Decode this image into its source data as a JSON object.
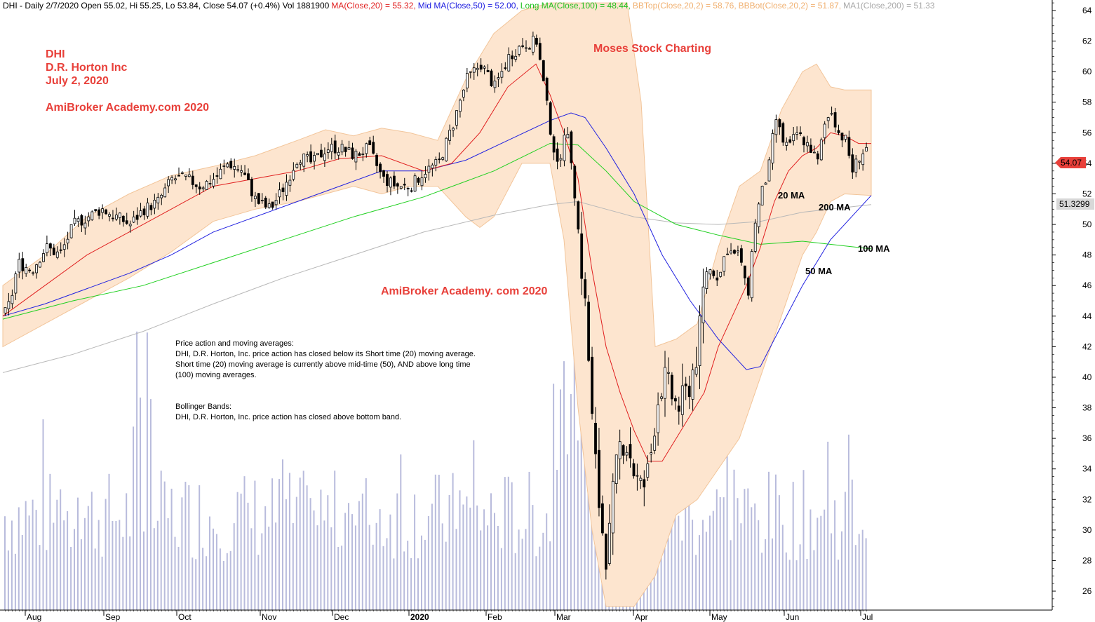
{
  "header": {
    "symbol_info": "DHI - Daily 2/7/2020 Open 55.02, Hi 55.25, Lo 53.84, Close 54.07 (+0.4%) Vol 1881900",
    "ma20": "MA(Close,20) = 55.32,",
    "ma50": "Mid MA(Close,50) = 52.00,",
    "ma100": "Long MA(Close,100) = 48.44,",
    "bbtop": "BBTop(Close,20,2) = 58.76,",
    "bbbot": "BBBot(Close,20,2) = 51.87,",
    "ma200": "MA1(Close,200) = 51.33"
  },
  "titles": {
    "line1": "DHI",
    "line2": "D.R. Horton Inc",
    "line3": "July 2, 2020",
    "line4": "AmiBroker Academy.com 2020",
    "watermark1": "Moses Stock Charting",
    "watermark2": "AmiBroker Academy. com  2020"
  },
  "notes": {
    "p1_title": "Price action and moving averages:",
    "p1_l1": "DHI, D.R. Horton, Inc. price action has closed below its Short time (20) moving average.",
    "p1_l2": "Short time (20) moving average is currently above mid-time (50), AND above long time",
    "p1_l3": "(100) moving averages.",
    "p2_title": "Bollinger Bands:",
    "p2_l1": "DHI, D.R. Horton, Inc. price action has closed above bottom band."
  },
  "ma_labels": {
    "ma20": "20 MA",
    "ma200": "200 MA",
    "ma100": "100 MA",
    "ma50": "50 MA"
  },
  "price_tags": {
    "last": "54.07",
    "ma200": "51.3299"
  },
  "colors": {
    "ma20": "#e02020",
    "ma50": "#2020e0",
    "ma100": "#20d020",
    "ma200": "#b8b8b8",
    "band_fill": "#fde5cf",
    "band_edge": "#f2c59a",
    "volume": "#b8bbdc",
    "candle": "#000000",
    "tag_red": "#e8403a",
    "tag_gray": "#d8d8d8",
    "watermark": "#e8403a"
  },
  "chart_data": {
    "type": "candlestick",
    "y_ticks": [
      26,
      28,
      30,
      32,
      34,
      36,
      38,
      40,
      42,
      44,
      46,
      48,
      50,
      52,
      54,
      56,
      58,
      60,
      62,
      64
    ],
    "ylim": [
      25,
      64.5
    ],
    "x_months": [
      "Aug",
      "Sep",
      "Oct",
      "Nov",
      "Dec",
      "2020",
      "Feb",
      "Mar",
      "Apr",
      "May",
      "Jun",
      "Jul"
    ],
    "price_path": [
      [
        0,
        44.0
      ],
      [
        10,
        45.0
      ],
      [
        20,
        47.5
      ],
      [
        40,
        47.0
      ],
      [
        60,
        48.5
      ],
      [
        80,
        48.0
      ],
      [
        100,
        50.0
      ],
      [
        120,
        50.5
      ],
      [
        140,
        51.0
      ],
      [
        160,
        50.5
      ],
      [
        180,
        50.0
      ],
      [
        200,
        51.0
      ],
      [
        220,
        51.5
      ],
      [
        240,
        53.0
      ],
      [
        260,
        53.0
      ],
      [
        280,
        52.5
      ],
      [
        300,
        53.0
      ],
      [
        320,
        54.0
      ],
      [
        340,
        53.5
      ],
      [
        360,
        51.5
      ],
      [
        380,
        51.0
      ],
      [
        400,
        52.5
      ],
      [
        420,
        54.5
      ],
      [
        440,
        54.0
      ],
      [
        460,
        55.0
      ],
      [
        480,
        55.0
      ],
      [
        500,
        54.5
      ],
      [
        520,
        55.0
      ],
      [
        540,
        53.0
      ],
      [
        560,
        52.5
      ],
      [
        580,
        52.5
      ],
      [
        600,
        53.5
      ],
      [
        620,
        54.0
      ],
      [
        640,
        56.5
      ],
      [
        660,
        59.5
      ],
      [
        680,
        60.5
      ],
      [
        700,
        59.0
      ],
      [
        720,
        61.0
      ],
      [
        740,
        61.8
      ],
      [
        760,
        62.0
      ],
      [
        770,
        59.0
      ],
      [
        780,
        56.0
      ],
      [
        790,
        53.5
      ],
      [
        800,
        56.5
      ],
      [
        810,
        54.0
      ],
      [
        820,
        49.0
      ],
      [
        830,
        44.0
      ],
      [
        840,
        36.0
      ],
      [
        850,
        31.0
      ],
      [
        860,
        28.0
      ],
      [
        870,
        33.0
      ],
      [
        880,
        36.0
      ],
      [
        890,
        35.5
      ],
      [
        900,
        33.5
      ],
      [
        910,
        32.5
      ],
      [
        920,
        34.0
      ],
      [
        930,
        38.0
      ],
      [
        940,
        40.0
      ],
      [
        950,
        39.0
      ],
      [
        960,
        38.0
      ],
      [
        970,
        38.5
      ],
      [
        980,
        40.0
      ],
      [
        990,
        42.0
      ],
      [
        1000,
        47.0
      ],
      [
        1010,
        47.0
      ],
      [
        1020,
        46.5
      ],
      [
        1030,
        48.5
      ],
      [
        1040,
        48.0
      ],
      [
        1050,
        48.0
      ],
      [
        1060,
        45.0
      ],
      [
        1070,
        50.0
      ],
      [
        1080,
        52.0
      ],
      [
        1090,
        53.5
      ],
      [
        1100,
        57.0
      ],
      [
        1110,
        55.5
      ],
      [
        1120,
        55.0
      ],
      [
        1130,
        56.0
      ],
      [
        1140,
        55.5
      ],
      [
        1150,
        55.0
      ],
      [
        1160,
        54.0
      ],
      [
        1170,
        56.5
      ],
      [
        1180,
        57.5
      ],
      [
        1190,
        56.0
      ],
      [
        1200,
        55.5
      ],
      [
        1210,
        53.5
      ],
      [
        1220,
        54.5
      ],
      [
        1230,
        55.0
      ],
      [
        1238,
        54.07
      ]
    ],
    "ma20_path": [
      [
        0,
        44.0
      ],
      [
        60,
        46.0
      ],
      [
        120,
        48.0
      ],
      [
        180,
        49.5
      ],
      [
        240,
        51.0
      ],
      [
        300,
        52.5
      ],
      [
        360,
        53.0
      ],
      [
        420,
        53.5
      ],
      [
        480,
        54.3
      ],
      [
        540,
        54.5
      ],
      [
        600,
        53.5
      ],
      [
        640,
        54.0
      ],
      [
        680,
        56.0
      ],
      [
        720,
        59.0
      ],
      [
        760,
        60.5
      ],
      [
        780,
        58.5
      ],
      [
        800,
        56.0
      ],
      [
        820,
        53.0
      ],
      [
        840,
        47.0
      ],
      [
        860,
        42.0
      ],
      [
        880,
        39.0
      ],
      [
        900,
        36.5
      ],
      [
        920,
        34.5
      ],
      [
        940,
        34.5
      ],
      [
        960,
        36.0
      ],
      [
        980,
        37.5
      ],
      [
        1000,
        39.0
      ],
      [
        1020,
        42.0
      ],
      [
        1040,
        44.0
      ],
      [
        1060,
        46.0
      ],
      [
        1080,
        48.5
      ],
      [
        1100,
        51.5
      ],
      [
        1120,
        53.5
      ],
      [
        1140,
        54.5
      ],
      [
        1160,
        55.0
      ],
      [
        1180,
        56.0
      ],
      [
        1200,
        55.8
      ],
      [
        1220,
        55.3
      ],
      [
        1238,
        55.3
      ]
    ],
    "ma50_path": [
      [
        0,
        44.0
      ],
      [
        60,
        44.8
      ],
      [
        120,
        45.8
      ],
      [
        180,
        46.8
      ],
      [
        240,
        48.0
      ],
      [
        300,
        49.5
      ],
      [
        360,
        50.5
      ],
      [
        420,
        51.5
      ],
      [
        480,
        52.5
      ],
      [
        540,
        53.5
      ],
      [
        600,
        53.5
      ],
      [
        660,
        54.2
      ],
      [
        720,
        55.5
      ],
      [
        780,
        56.8
      ],
      [
        810,
        57.3
      ],
      [
        830,
        57.0
      ],
      [
        860,
        55.0
      ],
      [
        900,
        52.0
      ],
      [
        940,
        48.0
      ],
      [
        980,
        45.0
      ],
      [
        1020,
        42.5
      ],
      [
        1060,
        40.5
      ],
      [
        1080,
        40.7
      ],
      [
        1100,
        42.5
      ],
      [
        1140,
        46.0
      ],
      [
        1180,
        49.0
      ],
      [
        1210,
        50.5
      ],
      [
        1238,
        51.9
      ]
    ],
    "ma100_path": [
      [
        0,
        43.8
      ],
      [
        100,
        45.0
      ],
      [
        200,
        46.0
      ],
      [
        300,
        47.5
      ],
      [
        400,
        49.0
      ],
      [
        500,
        50.5
      ],
      [
        600,
        51.8
      ],
      [
        700,
        53.5
      ],
      [
        780,
        55.3
      ],
      [
        820,
        55.2
      ],
      [
        860,
        53.5
      ],
      [
        900,
        51.5
      ],
      [
        960,
        50.0
      ],
      [
        1020,
        49.3
      ],
      [
        1080,
        48.7
      ],
      [
        1140,
        48.9
      ],
      [
        1238,
        48.4
      ]
    ],
    "ma200_path": [
      [
        0,
        40.3
      ],
      [
        100,
        41.5
      ],
      [
        200,
        43.0
      ],
      [
        300,
        44.8
      ],
      [
        400,
        46.5
      ],
      [
        500,
        48.0
      ],
      [
        600,
        49.5
      ],
      [
        700,
        50.6
      ],
      [
        780,
        51.3
      ],
      [
        820,
        51.5
      ],
      [
        860,
        51.0
      ],
      [
        900,
        50.5
      ],
      [
        960,
        50.1
      ],
      [
        1020,
        50.0
      ],
      [
        1080,
        50.2
      ],
      [
        1140,
        50.8
      ],
      [
        1238,
        51.3
      ]
    ],
    "bb_top_path": [
      [
        0,
        46.0
      ],
      [
        60,
        48.0
      ],
      [
        120,
        50.5
      ],
      [
        180,
        52.0
      ],
      [
        240,
        53.2
      ],
      [
        300,
        53.8
      ],
      [
        360,
        54.5
      ],
      [
        420,
        55.5
      ],
      [
        460,
        56.2
      ],
      [
        500,
        55.8
      ],
      [
        540,
        56.3
      ],
      [
        580,
        56.0
      ],
      [
        620,
        55.5
      ],
      [
        660,
        59.5
      ],
      [
        700,
        62.5
      ],
      [
        740,
        64.0
      ],
      [
        780,
        64.5
      ],
      [
        820,
        64.5
      ],
      [
        860,
        64.5
      ],
      [
        890,
        64.5
      ],
      [
        910,
        58.0
      ],
      [
        930,
        42.0
      ],
      [
        960,
        42.5
      ],
      [
        990,
        43.5
      ],
      [
        1020,
        48.5
      ],
      [
        1050,
        52.5
      ],
      [
        1080,
        53.5
      ],
      [
        1110,
        57.5
      ],
      [
        1140,
        60.0
      ],
      [
        1160,
        60.5
      ],
      [
        1180,
        59.0
      ],
      [
        1200,
        58.8
      ],
      [
        1238,
        58.8
      ]
    ],
    "bb_bot_path": [
      [
        0,
        42.0
      ],
      [
        60,
        43.5
      ],
      [
        120,
        45.0
      ],
      [
        180,
        46.5
      ],
      [
        240,
        48.2
      ],
      [
        300,
        50.2
      ],
      [
        360,
        51.0
      ],
      [
        420,
        51.5
      ],
      [
        460,
        52.0
      ],
      [
        500,
        52.5
      ],
      [
        540,
        52.0
      ],
      [
        580,
        52.5
      ],
      [
        620,
        52.5
      ],
      [
        660,
        50.5
      ],
      [
        680,
        49.8
      ],
      [
        700,
        50.5
      ],
      [
        740,
        54.0
      ],
      [
        780,
        54.0
      ],
      [
        800,
        49.0
      ],
      [
        820,
        38.0
      ],
      [
        840,
        30.0
      ],
      [
        860,
        25.0
      ],
      [
        900,
        25.0
      ],
      [
        930,
        27.0
      ],
      [
        960,
        31.0
      ],
      [
        990,
        32.0
      ],
      [
        1020,
        34.0
      ],
      [
        1050,
        36.0
      ],
      [
        1080,
        40.0
      ],
      [
        1110,
        44.0
      ],
      [
        1140,
        48.0
      ],
      [
        1160,
        49.5
      ],
      [
        1180,
        51.5
      ],
      [
        1200,
        52.0
      ],
      [
        1238,
        51.9
      ]
    ]
  }
}
